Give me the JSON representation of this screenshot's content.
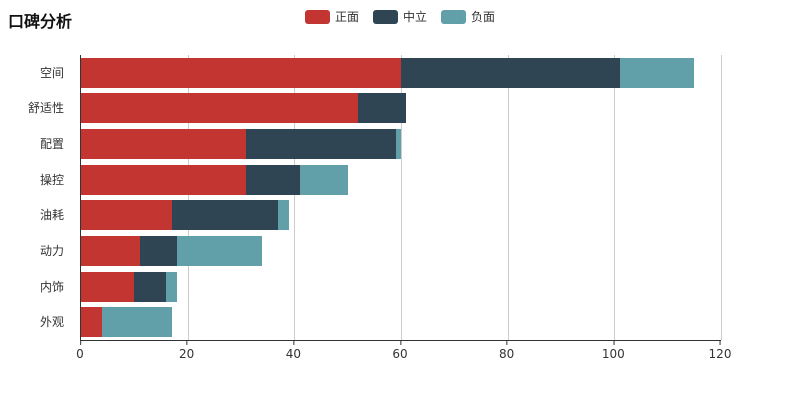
{
  "title": "口碑分析",
  "legend": {
    "items": [
      {
        "id": "positive",
        "label": "正面",
        "color": "#c23531"
      },
      {
        "id": "neutral",
        "label": "中立",
        "color": "#2f4554"
      },
      {
        "id": "negative",
        "label": "负面",
        "color": "#61a0a8"
      }
    ]
  },
  "chart_data": {
    "type": "bar",
    "orientation": "horizontal",
    "stacked": true,
    "title": "口碑分析",
    "categories": [
      "空间",
      "舒适性",
      "配置",
      "操控",
      "油耗",
      "动力",
      "内饰",
      "外观"
    ],
    "series": [
      {
        "id": "positive",
        "name": "正面",
        "color": "#c23531",
        "values": [
          60,
          52,
          31,
          31,
          17,
          11,
          10,
          4
        ]
      },
      {
        "id": "neutral",
        "name": "中立",
        "color": "#2f4554",
        "values": [
          41,
          9,
          28,
          10,
          20,
          7,
          6,
          0
        ]
      },
      {
        "id": "negative",
        "name": "负面",
        "color": "#61a0a8",
        "values": [
          14,
          0,
          1,
          9,
          2,
          16,
          2,
          13
        ]
      }
    ],
    "xlim": [
      0,
      120
    ],
    "xticks": [
      0,
      20,
      40,
      60,
      80,
      100,
      120
    ],
    "grid": true,
    "legend_position": "top-center",
    "xlabel": "",
    "ylabel": "",
    "axis_color": "#333333",
    "gridline_color": "#cccccc"
  }
}
